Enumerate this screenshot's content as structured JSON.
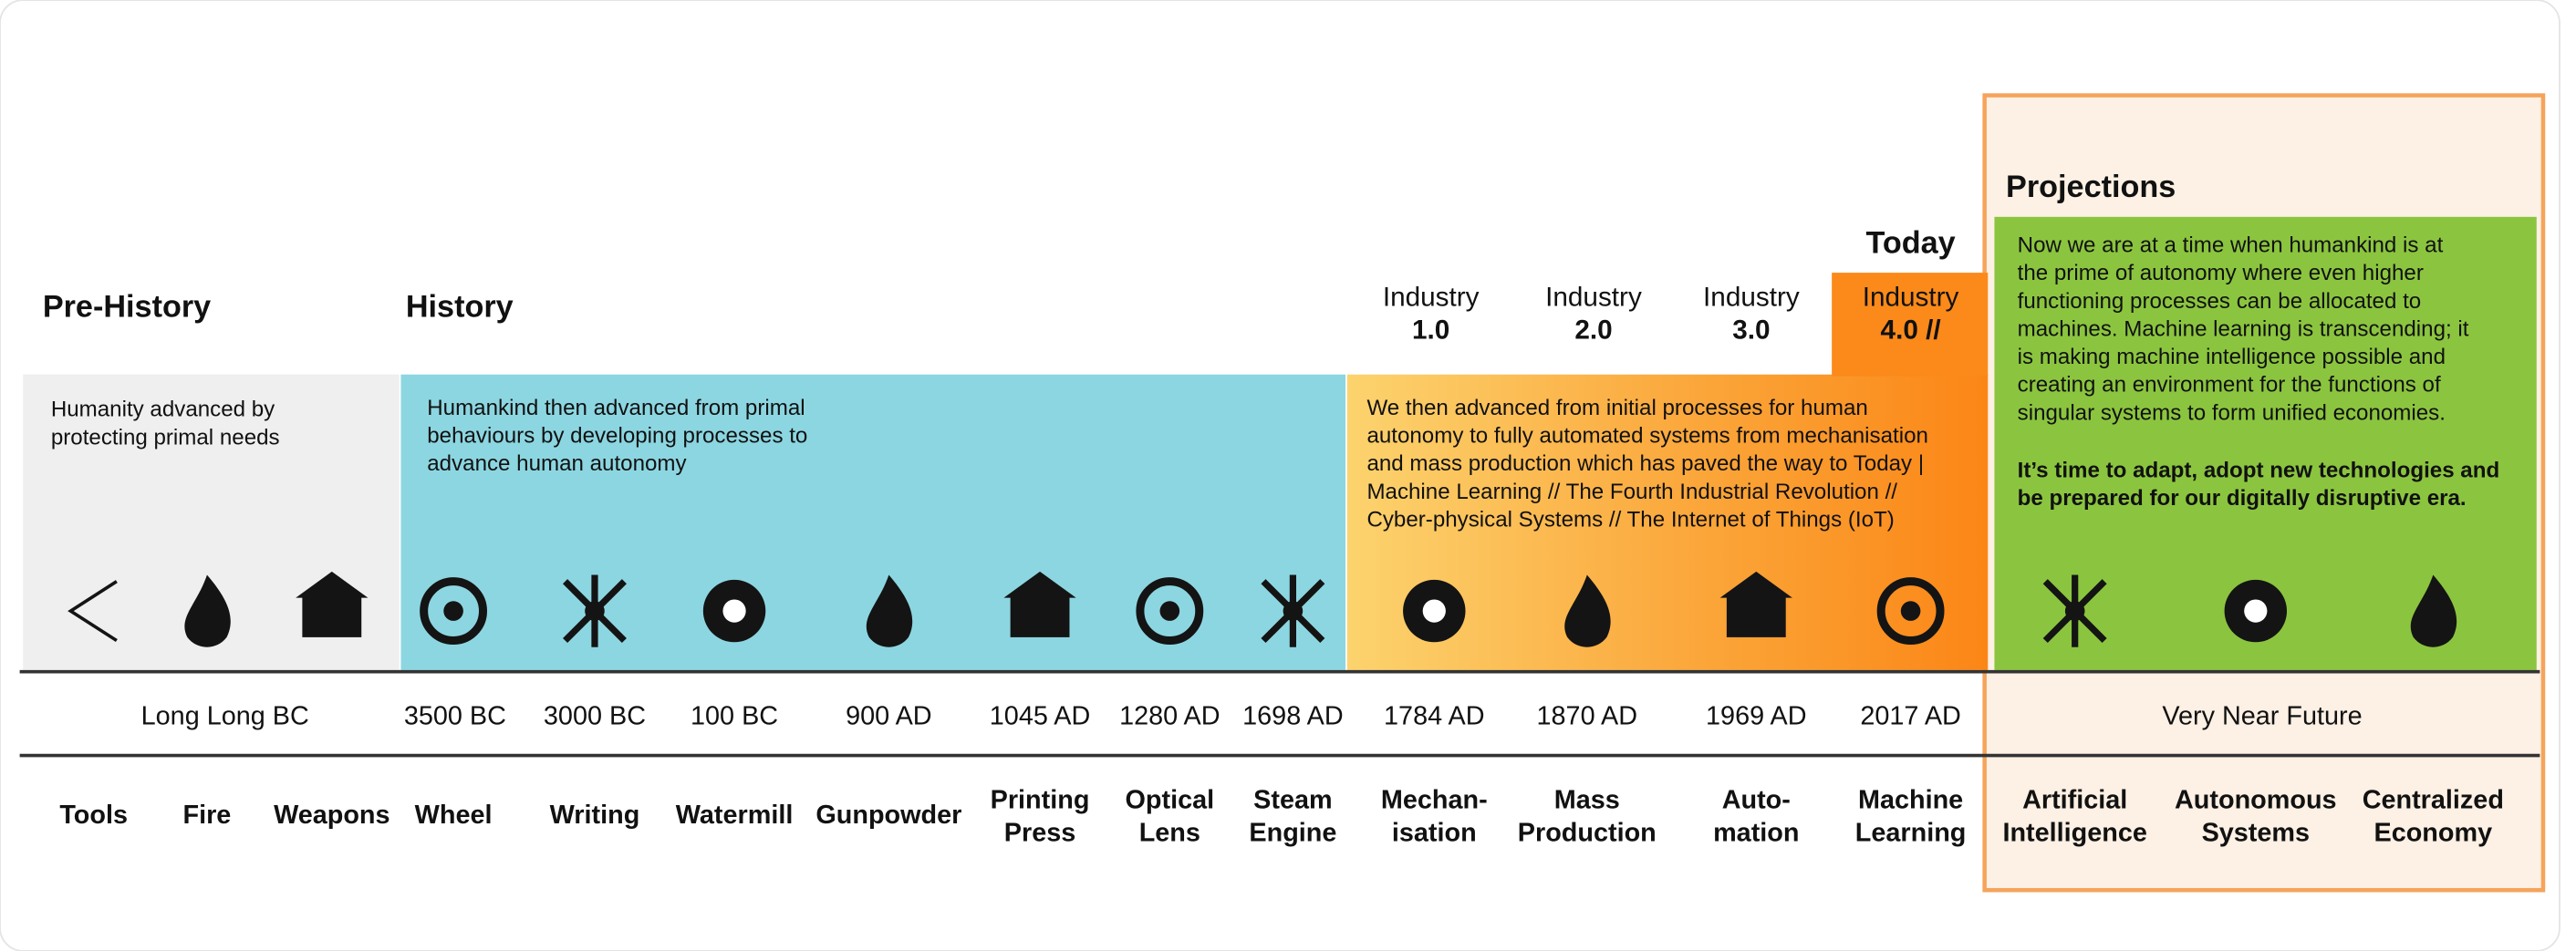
{
  "headings": {
    "prehistory": "Pre-History",
    "history": "History",
    "projections": "Projections",
    "today": "Today"
  },
  "industries": [
    {
      "word": "Industry",
      "number": "1.0"
    },
    {
      "word": "Industry",
      "number": "2.0"
    },
    {
      "word": "Industry",
      "number": "3.0"
    },
    {
      "word": "Industry",
      "number": "4.0 //"
    }
  ],
  "descriptions": {
    "prehistory": [
      "Humanity advanced by",
      "protecting primal needs"
    ],
    "history": [
      "Humankind then advanced from primal",
      "behaviours by developing processes to",
      "advance human autonomy"
    ],
    "industry": [
      "We then advanced from initial processes for human",
      "autonomy to fully automated systems from mechanisation",
      "and mass production which has paved the way to Today |",
      "Machine Learning // The Fourth Industrial Revolution //",
      "Cyber-physical Systems // The  Internet of Things (IoT)"
    ],
    "projections": [
      "Now we are at a time when humankind is at",
      "the prime of autonomy where even higher",
      "functioning processes can be allocated to",
      "machines. Machine learning is transcending; it",
      "is making machine intelligence possible and",
      "creating an environment for the functions of",
      "singular systems to form unified economies."
    ],
    "projections_bold": [
      "It’s time to adapt, adopt new technologies and",
      "be prepared for our digitally disruptive era."
    ]
  },
  "dates": [
    "Long Long BC",
    "3500 BC",
    "3000 BC",
    "100 BC",
    "900 AD",
    "1045 AD",
    "1280 AD",
    "1698 AD",
    "1784 AD",
    "1870 AD",
    "1969 AD",
    "2017 AD",
    "Very Near Future"
  ],
  "items": [
    [
      "Tools"
    ],
    [
      "Fire"
    ],
    [
      "Weapons"
    ],
    [
      "Wheel"
    ],
    [
      "Writing"
    ],
    [
      "Watermill"
    ],
    [
      "Gunpowder"
    ],
    [
      "Printing",
      "Press"
    ],
    [
      "Optical",
      "Lens"
    ],
    [
      "Steam",
      "Engine"
    ],
    [
      "Mechan-",
      "isation"
    ],
    [
      "Mass",
      "Production"
    ],
    [
      "Auto-",
      "mation"
    ],
    [
      "Machine",
      "Learning"
    ],
    [
      "Artificial",
      "Intelligence"
    ],
    [
      "Autonomous",
      "Systems"
    ],
    [
      "Centralized",
      "Economy"
    ]
  ]
}
